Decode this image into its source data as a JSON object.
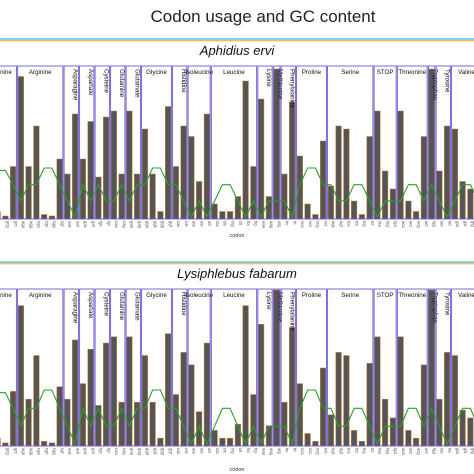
{
  "chart_data": {
    "type": "bar",
    "title": "Codon usage and GC content",
    "xlabel": "codon",
    "ylabel": "",
    "colors": {
      "bar_fill": "#555555",
      "bar_edge": "#cc7a2e",
      "gc_line": "#2ca02c",
      "group_box": "#6b5bd6",
      "header_rule_top": "#3cb8d6",
      "header_rule_bottom": "#f0a32e"
    },
    "groups": [
      {
        "name": "Alanine",
        "count": 4
      },
      {
        "name": "Arginine",
        "count": 6
      },
      {
        "name": "Asparagine",
        "count": 2
      },
      {
        "name": "Aspartate",
        "count": 2
      },
      {
        "name": "Cysteine",
        "count": 2
      },
      {
        "name": "Glutamine",
        "count": 2
      },
      {
        "name": "Glutamate",
        "count": 2
      },
      {
        "name": "Glycine",
        "count": 4
      },
      {
        "name": "Histidine",
        "count": 2
      },
      {
        "name": "Isoleucine",
        "count": 3
      },
      {
        "name": "Leucine",
        "count": 6
      },
      {
        "name": "Lysine",
        "count": 2
      },
      {
        "name": "Methionine",
        "count": 1
      },
      {
        "name": "Phenylalanine",
        "count": 2
      },
      {
        "name": "Proline",
        "count": 4
      },
      {
        "name": "Serine",
        "count": 6
      },
      {
        "name": "STOP",
        "count": 3
      },
      {
        "name": "Threonine",
        "count": 4
      },
      {
        "name": "Tryptophan",
        "count": 1
      },
      {
        "name": "Tyrosine",
        "count": 2
      },
      {
        "name": "Valine",
        "count": 4
      }
    ],
    "codons": [
      "gca",
      "gcc",
      "gcg",
      "gct",
      "aga",
      "agg",
      "cga",
      "cgc",
      "cgg",
      "cgt",
      "aac",
      "aat",
      "gac",
      "gat",
      "tgc",
      "tgt",
      "caa",
      "cag",
      "gaa",
      "gag",
      "gga",
      "ggc",
      "ggg",
      "ggt",
      "cac",
      "cat",
      "ata",
      "atc",
      "att",
      "cta",
      "ctc",
      "ctg",
      "ctt",
      "tta",
      "ttg",
      "aaa",
      "aag",
      "atg",
      "ttc",
      "ttt",
      "cca",
      "ccc",
      "ccg",
      "cct",
      "agc",
      "agt",
      "tca",
      "tcc",
      "tcg",
      "tct",
      "taa",
      "tag",
      "tga",
      "aca",
      "acc",
      "acg",
      "act",
      "tgg",
      "tac",
      "tat",
      "gta",
      "gtc",
      "gtg",
      "gtt"
    ],
    "panels": [
      {
        "name": "Aphidius ervi",
        "values": [
          0.25,
          0.05,
          0.02,
          0.35,
          0.95,
          0.35,
          0.62,
          0.03,
          0.02,
          0.4,
          0.3,
          0.7,
          0.4,
          0.65,
          0.28,
          0.68,
          0.72,
          0.3,
          0.72,
          0.3,
          0.6,
          0.3,
          0.05,
          0.75,
          0.35,
          0.62,
          0.55,
          0.25,
          0.7,
          0.1,
          0.05,
          0.05,
          0.15,
          0.92,
          0.35,
          0.8,
          0.15,
          1.0,
          0.3,
          0.78,
          0.42,
          0.1,
          0.03,
          0.52,
          0.22,
          0.62,
          0.6,
          0.12,
          0.03,
          0.55,
          0.72,
          0.32,
          0.2,
          0.72,
          0.12,
          0.05,
          0.55,
          1.0,
          0.32,
          0.62,
          0.6,
          0.25,
          0.2,
          0.72
        ],
        "gc": [
          0.66,
          0.95,
          0.95,
          0.66,
          0.33,
          0.66,
          0.66,
          1.0,
          1.0,
          0.66,
          0.33,
          0.0,
          0.66,
          0.33,
          0.66,
          0.33,
          0.33,
          0.66,
          0.33,
          0.66,
          0.66,
          1.0,
          1.0,
          0.66,
          0.66,
          0.33,
          0.0,
          0.33,
          0.0,
          0.33,
          0.66,
          0.66,
          0.33,
          0.0,
          0.33,
          0.0,
          0.33,
          0.33,
          0.33,
          0.0,
          0.66,
          1.0,
          1.0,
          0.66,
          0.66,
          0.33,
          0.33,
          0.66,
          0.66,
          0.33,
          0.0,
          0.33,
          0.33,
          0.33,
          0.66,
          0.66,
          0.33,
          0.66,
          0.33,
          0.0,
          0.33,
          0.66,
          0.66,
          0.33
        ]
      },
      {
        "name": "Lysiphlebus fabarum",
        "values": [
          0.25,
          0.05,
          0.02,
          0.35,
          0.9,
          0.3,
          0.58,
          0.03,
          0.02,
          0.38,
          0.3,
          0.68,
          0.4,
          0.62,
          0.26,
          0.66,
          0.7,
          0.28,
          0.7,
          0.28,
          0.58,
          0.28,
          0.05,
          0.72,
          0.33,
          0.6,
          0.52,
          0.22,
          0.66,
          0.1,
          0.05,
          0.05,
          0.14,
          0.9,
          0.33,
          0.78,
          0.13,
          1.0,
          0.28,
          0.76,
          0.4,
          0.08,
          0.03,
          0.5,
          0.2,
          0.6,
          0.58,
          0.1,
          0.03,
          0.53,
          0.7,
          0.3,
          0.18,
          0.7,
          0.1,
          0.05,
          0.52,
          1.0,
          0.3,
          0.6,
          0.58,
          0.23,
          0.18,
          0.7
        ],
        "gc": [
          0.66,
          0.95,
          0.95,
          0.66,
          0.33,
          0.66,
          0.66,
          1.0,
          1.0,
          0.66,
          0.33,
          0.0,
          0.66,
          0.33,
          0.66,
          0.33,
          0.33,
          0.66,
          0.33,
          0.66,
          0.66,
          1.0,
          1.0,
          0.66,
          0.66,
          0.33,
          0.0,
          0.33,
          0.0,
          0.33,
          0.66,
          0.66,
          0.33,
          0.0,
          0.33,
          0.0,
          0.33,
          0.33,
          0.33,
          0.0,
          0.66,
          1.0,
          1.0,
          0.66,
          0.66,
          0.33,
          0.33,
          0.66,
          0.66,
          0.33,
          0.0,
          0.33,
          0.33,
          0.33,
          0.66,
          0.66,
          0.33,
          0.66,
          0.33,
          0.0,
          0.33,
          0.66,
          0.66,
          0.33
        ]
      }
    ]
  }
}
